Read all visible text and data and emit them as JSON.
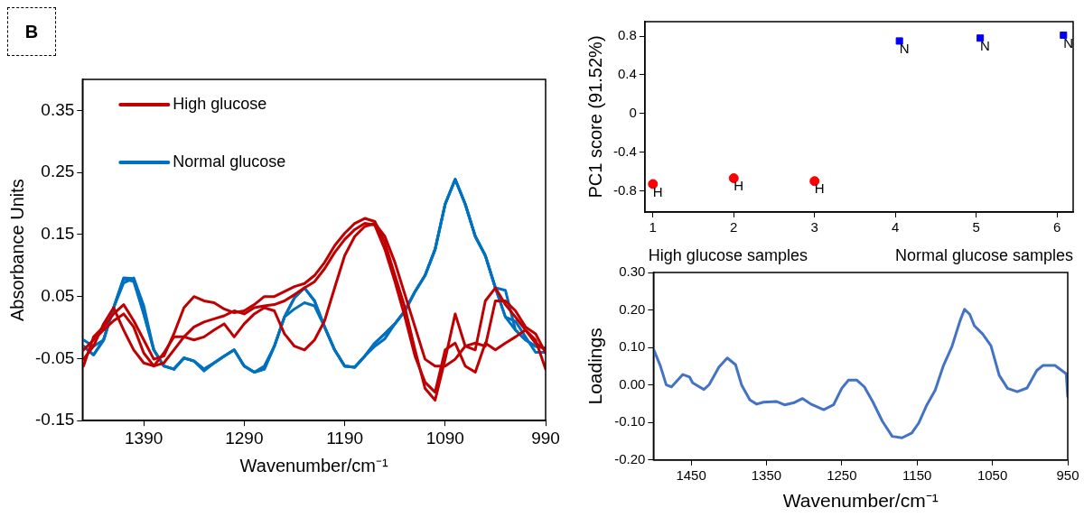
{
  "chart_data": [
    {
      "type": "line",
      "xlabel": "Wavenumber/cm⁻¹",
      "ylabel": "Absorbance Units",
      "annotations": [
        "B"
      ],
      "marker": "none",
      "line_style": "solid",
      "grid": false,
      "legend": "top left",
      "x": [
        1450,
        1440,
        1430,
        1420,
        1410,
        1400,
        1390,
        1380,
        1370,
        1360,
        1350,
        1340,
        1330,
        1320,
        1310,
        1300,
        1290,
        1280,
        1270,
        1260,
        1250,
        1240,
        1230,
        1220,
        1210,
        1200,
        1190,
        1180,
        1170,
        1160,
        1150,
        1140,
        1130,
        1120,
        1110,
        1100,
        1090,
        1080,
        1070,
        1060,
        1050,
        1040,
        1030,
        1020,
        1010,
        1000,
        990
      ],
      "xlim": [
        1451,
        990
      ],
      "xticks": [
        1390,
        1290,
        1190,
        1090,
        990
      ],
      "ylim": [
        -0.15,
        0.4
      ],
      "yticks": [
        -0.15,
        -0.05,
        0.05,
        0.15,
        0.25,
        0.35
      ],
      "series": [
        {
          "name": "High glucose",
          "color": "#c00000",
          "values": [
            -0.062,
            -0.015,
            0.001,
            0.022,
            0.037,
            0.011,
            -0.02,
            -0.051,
            -0.046,
            -0.01,
            0.032,
            0.05,
            0.043,
            0.04,
            0.03,
            0.024,
            0.027,
            0.037,
            0.05,
            0.05,
            0.058,
            0.066,
            0.071,
            0.084,
            0.105,
            0.132,
            0.152,
            0.168,
            0.176,
            0.171,
            0.137,
            0.084,
            0.032,
            -0.036,
            -0.098,
            -0.117,
            -0.051,
            0.022,
            -0.03,
            -0.036,
            0.043,
            0.064,
            0.037,
            0.017,
            -0.004,
            -0.02,
            -0.067
          ]
        },
        {
          "color": "#c00000",
          "values": [
            -0.036,
            -0.02,
            -0.004,
            0.011,
            0.022,
            0.001,
            -0.041,
            -0.062,
            -0.057,
            -0.036,
            -0.015,
            0.001,
            0.009,
            0.014,
            0.019,
            0.027,
            0.022,
            0.032,
            0.035,
            0.037,
            0.043,
            0.053,
            0.064,
            0.074,
            0.095,
            0.121,
            0.142,
            0.158,
            0.168,
            0.165,
            0.126,
            0.074,
            0.017,
            -0.046,
            -0.088,
            -0.104,
            -0.036,
            -0.025,
            -0.062,
            -0.072,
            -0.025,
            -0.036,
            -0.025,
            -0.015,
            -0.004,
            -0.025,
            -0.036
          ]
        },
        {
          "color": "#c00000",
          "values": [
            -0.051,
            -0.03,
            0.006,
            0.032,
            -0.004,
            -0.036,
            -0.057,
            -0.062,
            -0.041,
            -0.015,
            -0.015,
            -0.02,
            -0.015,
            -0.004,
            0.006,
            -0.015,
            0.006,
            0.022,
            0.032,
            0.027,
            -0.01,
            -0.03,
            -0.036,
            -0.02,
            0.011,
            0.064,
            0.116,
            0.147,
            0.163,
            0.168,
            0.147,
            0.105,
            0.053,
            0.001,
            -0.051,
            -0.062,
            -0.062,
            -0.051,
            -0.03,
            -0.025,
            -0.03,
            0.043,
            0.043,
            0.027,
            0.001,
            -0.01,
            -0.041
          ]
        },
        {
          "name": "Normal glucose",
          "color": "#0070c0",
          "values": [
            -0.03,
            -0.044,
            -0.02,
            0.032,
            0.079,
            0.074,
            0.022,
            -0.036,
            -0.062,
            -0.067,
            -0.049,
            -0.054,
            -0.067,
            -0.057,
            -0.046,
            -0.036,
            -0.062,
            -0.072,
            -0.067,
            -0.03,
            0.017,
            0.048,
            0.064,
            0.043,
            0.001,
            -0.036,
            -0.062,
            -0.064,
            -0.046,
            -0.025,
            -0.01,
            0.006,
            0.027,
            0.058,
            0.084,
            0.126,
            0.199,
            0.239,
            0.199,
            0.147,
            0.116,
            0.064,
            0.017,
            -0.004,
            -0.02,
            -0.03,
            -0.033
          ]
        },
        {
          "color": "#0070c0",
          "values": [
            -0.03,
            -0.044,
            -0.02,
            0.032,
            0.072,
            0.08,
            0.035,
            -0.036,
            -0.062,
            -0.067,
            -0.049,
            -0.054,
            -0.07,
            -0.057,
            -0.046,
            -0.036,
            -0.062,
            -0.072,
            -0.067,
            -0.03,
            0.017,
            0.03,
            0.04,
            0.035,
            0.001,
            -0.036,
            -0.062,
            -0.064,
            -0.046,
            -0.03,
            -0.018,
            0.006,
            0.027,
            0.058,
            0.084,
            0.126,
            0.199,
            0.239,
            0.199,
            0.147,
            0.116,
            0.064,
            0.017,
            0.01,
            -0.015,
            -0.04,
            -0.04
          ]
        },
        {
          "color": "#0070c0",
          "values": [
            -0.02,
            -0.03,
            -0.02,
            0.032,
            0.08,
            0.079,
            0.022,
            -0.036,
            -0.062,
            -0.067,
            -0.049,
            -0.054,
            -0.067,
            -0.057,
            -0.046,
            -0.036,
            -0.062,
            -0.072,
            -0.062,
            -0.03,
            0.017,
            0.048,
            0.064,
            0.043,
            0.001,
            -0.036,
            -0.062,
            -0.064,
            -0.046,
            -0.025,
            -0.01,
            0.006,
            0.027,
            0.058,
            0.084,
            0.126,
            0.199,
            0.239,
            0.199,
            0.147,
            0.116,
            0.064,
            0.06,
            -0.004,
            -0.02,
            -0.03,
            -0.033
          ]
        }
      ]
    },
    {
      "type": "scatter",
      "ylabel": "PC1 score (91.52%)",
      "grid": false,
      "xlim": [
        0.9,
        6.2
      ],
      "xticks": [
        1,
        2,
        3,
        4,
        5,
        6
      ],
      "ylim": [
        -1.02,
        0.95
      ],
      "yticks": [
        -0.8,
        -0.4,
        0,
        0.4,
        0.8
      ],
      "annotations": [
        "High glucose samples",
        "Normal glucose samples",
        {
          "text": "H",
          "x": 1,
          "y": -0.73
        },
        {
          "text": "H",
          "x": 2,
          "y": -0.67
        },
        {
          "text": "H",
          "x": 3,
          "y": -0.7
        },
        {
          "text": "N",
          "x": 4.05,
          "y": 0.75
        },
        {
          "text": "N",
          "x": 5.05,
          "y": 0.78
        },
        {
          "text": "N",
          "x": 6.08,
          "y": 0.81
        }
      ],
      "series": [
        {
          "color": "#ff0000",
          "marker": "circle",
          "x": [
            1,
            2,
            3
          ],
          "values": [
            -0.73,
            -0.67,
            -0.7
          ]
        },
        {
          "color": "#0000ff",
          "marker": "square",
          "x": [
            4.05,
            5.05,
            6.08
          ],
          "values": [
            0.75,
            0.78,
            0.81
          ]
        }
      ]
    },
    {
      "type": "line",
      "xlabel": "Wavenumber/cm⁻¹",
      "ylabel": "Loadings",
      "marker": "none",
      "line_style": "solid",
      "grid": false,
      "xlim": [
        1500,
        950
      ],
      "xticks": [
        1450,
        1350,
        1250,
        1150,
        1050,
        950
      ],
      "ylim": [
        -0.2,
        0.3
      ],
      "yticks": [
        {
          "value": -0.2,
          "label": "-0.20"
        },
        {
          "value": -0.1,
          "label": "-0.10"
        },
        {
          "value": 0,
          "label": "0.00"
        },
        {
          "value": 0.1,
          "label": "0.10"
        },
        {
          "value": 0.2,
          "label": "0.20"
        },
        {
          "value": 0.3,
          "label": "0.30"
        }
      ],
      "series": [
        {
          "color": "#4472c4",
          "x": [
            1500,
            1491,
            1483,
            1476,
            1470,
            1461,
            1452,
            1448,
            1439,
            1433,
            1426,
            1413,
            1402,
            1391,
            1383,
            1372,
            1363,
            1354,
            1337,
            1326,
            1313,
            1302,
            1291,
            1274,
            1261,
            1250,
            1241,
            1230,
            1220,
            1209,
            1196,
            1183,
            1170,
            1157,
            1148,
            1137,
            1126,
            1115,
            1104,
            1093,
            1087,
            1080,
            1074,
            1063,
            1052,
            1041,
            1030,
            1017,
            1004,
            991,
            983,
            967,
            952,
            950
          ],
          "values": [
            0.096,
            0.052,
            0.0,
            -0.005,
            0.008,
            0.028,
            0.021,
            0.006,
            -0.005,
            -0.012,
            0.001,
            0.048,
            0.072,
            0.054,
            0.0,
            -0.04,
            -0.051,
            -0.046,
            -0.044,
            -0.053,
            -0.047,
            -0.036,
            -0.051,
            -0.066,
            -0.053,
            -0.009,
            0.013,
            0.013,
            -0.005,
            -0.044,
            -0.097,
            -0.137,
            -0.141,
            -0.128,
            -0.102,
            -0.053,
            -0.014,
            0.052,
            0.101,
            0.171,
            0.202,
            0.188,
            0.158,
            0.136,
            0.105,
            0.026,
            -0.009,
            -0.018,
            -0.008,
            0.039,
            0.052,
            0.052,
            0.03,
            -0.031
          ]
        }
      ]
    }
  ]
}
